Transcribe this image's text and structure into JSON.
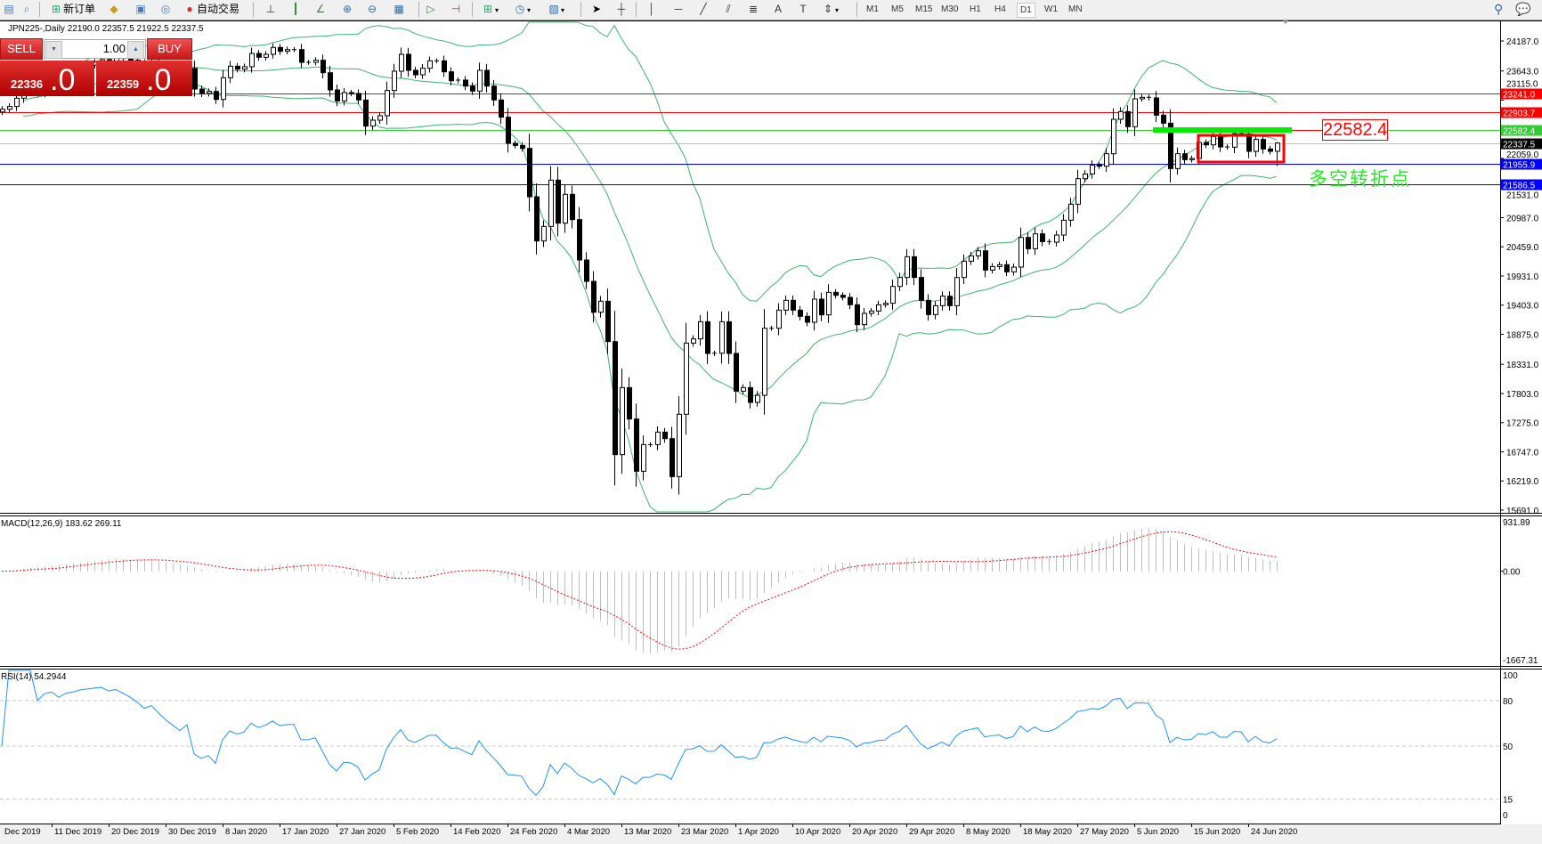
{
  "toolbar": {
    "new_order": "新订单",
    "auto_trading": "自动交易",
    "timeframes": [
      "M1",
      "M5",
      "M15",
      "M30",
      "H1",
      "H4",
      "D1",
      "W1",
      "MN"
    ],
    "active_timeframe": "D1"
  },
  "chart": {
    "symbol_line": "JPN225-,Daily  22190.0 22357.5 21922.5 22337.5"
  },
  "trade_panel": {
    "sell": "SELL",
    "buy": "BUY",
    "lot": "1.00",
    "bid_main": "22336",
    "bid_frac": ".0",
    "ask_main": "22359",
    "ask_frac": ".0"
  },
  "price_axis": {
    "ticks": [
      "24187.0",
      "23643.0",
      "23115.0",
      "22059.0",
      "21531.0",
      "20987.0",
      "20459.0",
      "19931.0",
      "19403.0",
      "18875.0",
      "18331.0",
      "17803.0",
      "17275.0",
      "16747.0",
      "16219.0",
      "15691.0"
    ]
  },
  "levels": [
    {
      "value": "23241.0",
      "color": "#ff0000",
      "text_color": "#ffffff"
    },
    {
      "value": "22903.7",
      "color": "#ff0000",
      "text_color": "#ffffff"
    },
    {
      "value": "22582.4",
      "color": "#33cc33",
      "text_color": "#ffffff"
    },
    {
      "value": "22337.5",
      "color": "#c0c0c0",
      "badge": "#000000",
      "text_color": "#ffffff"
    },
    {
      "value": "21955.9",
      "color": "#0000ff",
      "text_color": "#ffffff"
    },
    {
      "value": "21586.5",
      "color": "#0000ff",
      "text_color": "#ffffff"
    }
  ],
  "annotation": {
    "label": "22582.4",
    "text": "多空转折点",
    "highlight_color": "#00ee00",
    "box_color": "#ff0000"
  },
  "macd": {
    "label": "MACD(12,26,9) 183.62 269.11",
    "axis": [
      "931.89",
      "0.00",
      "-1667.31"
    ]
  },
  "rsi": {
    "label": "RSI(14) 54.2944",
    "axis": [
      "100",
      "80",
      "50",
      "15",
      "0"
    ],
    "color": "#1e90ff"
  },
  "date_axis": [
    "Dec 2019",
    "11 Dec 2019",
    "20 Dec 2019",
    "30 Dec 2019",
    "8 Jan 2020",
    "17 Jan 2020",
    "27 Jan 2020",
    "5 Feb 2020",
    "14 Feb 2020",
    "24 Feb 2020",
    "4 Mar 2020",
    "13 Mar 2020",
    "23 Mar 2020",
    "1 Apr 2020",
    "10 Apr 2020",
    "20 Apr 2020",
    "29 Apr 2020",
    "8 May 2020",
    "18 May 2020",
    "27 May 2020",
    "5 Jun 2020",
    "15 Jun 2020",
    "24 Jun 2020"
  ],
  "chart_data": {
    "type": "candlestick",
    "closes": [
      22950,
      23000,
      23150,
      23300,
      23350,
      23250,
      23400,
      23450,
      23420,
      23550,
      23600,
      23700,
      23750,
      23800,
      23850,
      23820,
      23900,
      23870,
      23840,
      23800,
      23750,
      23820,
      23760,
      23700,
      23650,
      23600,
      23690,
      23316,
      23236,
      23273,
      23128,
      23521,
      23730,
      23676,
      23720,
      23961,
      23891,
      23945,
      24069,
      24000,
      24031,
      24031,
      23800,
      23800,
      23838,
      23612,
      23300,
      23101,
      23252,
      23236,
      23118,
      22645,
      22752,
      22833,
      23290,
      23639,
      23945,
      23655,
      23574,
      23693,
      23827,
      23827,
      23628,
      23467,
      23478,
      23370,
      23279,
      23655,
      23370,
      23118,
      22806,
      22333,
      22295,
      22242,
      21365,
      20565,
      20828,
      21667,
      20888,
      21409,
      20952,
      20221,
      19834,
      19275,
      19474,
      18743,
      16696,
      17910,
      17341,
      16395,
      16878,
      16878,
      17104,
      16986,
      16298,
      17427,
      18716,
      18792,
      19103,
      18528,
      18533,
      19103,
      18528,
      17846,
      17910,
      17642,
      17771,
      18985,
      18985,
      19313,
      19490,
      19313,
      19200,
      19093,
      19512,
      19227,
      19635,
      19582,
      19544,
      19410,
      19050,
      19254,
      19297,
      19410,
      19437,
      19742,
      19904,
      20280,
      19904,
      19490,
      19232,
      19393,
      19565,
      19393,
      19904,
      20199,
      20296,
      20387,
      20038,
      20102,
      20135,
      20006,
      20092,
      20629,
      20425,
      20694,
      20554,
      20543,
      20672,
      20941,
      21231,
      21693,
      21779,
      21940,
      21919,
      22145,
      22768,
      22908,
      22634,
      23139,
      23166,
      23155,
      22843,
      22698,
      21876,
      22145,
      22037,
      22059,
      22349,
      22306,
      22456,
      22268,
      22263,
      22510,
      22500,
      22188,
      22403,
      22231,
      22188,
      22337.5
    ],
    "last_bar": {
      "open": 22190.0,
      "high": 22357.5,
      "low": 21922.5,
      "close": 22337.5
    },
    "bands_color": "#3cb371"
  }
}
